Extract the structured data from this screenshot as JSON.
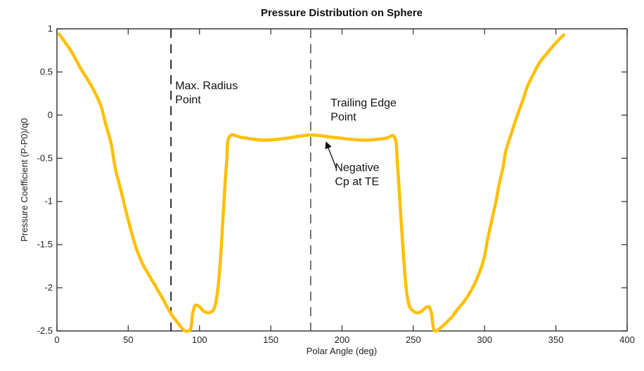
{
  "chart_data": {
    "type": "line",
    "title": "Pressure Distribution on Sphere",
    "xlabel": "Polar Angle (deg)",
    "ylabel": "Pressure Coefficient (P-P0)/q0",
    "xlim": [
      0,
      400
    ],
    "ylim": [
      -2.5,
      1
    ],
    "xticks": [
      0,
      50,
      100,
      150,
      200,
      250,
      300,
      350,
      400
    ],
    "yticks": [
      1,
      0.5,
      0,
      -0.5,
      -1,
      -1.5,
      -2,
      -2.5
    ],
    "xtick_labels": [
      "0",
      "50",
      "100",
      "150",
      "200",
      "250",
      "300",
      "350",
      "400"
    ],
    "ytick_labels": [
      "1",
      "0.5",
      "0",
      "-0.5",
      "-1",
      "-1.5",
      "-2",
      "-2.5"
    ],
    "grid": false,
    "series": [
      {
        "name": "Cp",
        "color": "#FFBF00",
        "x": [
          1.5,
          10,
          17,
          22,
          27,
          31,
          34,
          38,
          41,
          45,
          49,
          53,
          56,
          60,
          63,
          68,
          74,
          80,
          85,
          89,
          92,
          94,
          95,
          96.5,
          98,
          100,
          103,
          106,
          109,
          111,
          113,
          115,
          117,
          119,
          121,
          130,
          145,
          160,
          178,
          195,
          215,
          230,
          237,
          239,
          241,
          243,
          245,
          247,
          250,
          253,
          256,
          258,
          260,
          261.5,
          263,
          264,
          265.5,
          268,
          272,
          277,
          281,
          286,
          291,
          295,
          298,
          300,
          302,
          305,
          308,
          310,
          313,
          315,
          319,
          323,
          327,
          330,
          335,
          339,
          344,
          349,
          355.5
        ],
        "y": [
          0.94,
          0.74,
          0.53,
          0.4,
          0.25,
          0.1,
          -0.09,
          -0.33,
          -0.62,
          -0.88,
          -1.15,
          -1.4,
          -1.56,
          -1.72,
          -1.81,
          -1.95,
          -2.12,
          -2.3,
          -2.41,
          -2.49,
          -2.5,
          -2.46,
          -2.32,
          -2.22,
          -2.2,
          -2.22,
          -2.27,
          -2.29,
          -2.27,
          -2.2,
          -2.0,
          -1.6,
          -1.05,
          -0.55,
          -0.25,
          -0.26,
          -0.29,
          -0.27,
          -0.23,
          -0.26,
          -0.29,
          -0.27,
          -0.26,
          -0.6,
          -1.1,
          -1.6,
          -2.0,
          -2.2,
          -2.27,
          -2.29,
          -2.27,
          -2.24,
          -2.22,
          -2.23,
          -2.32,
          -2.46,
          -2.5,
          -2.48,
          -2.42,
          -2.34,
          -2.25,
          -2.15,
          -2.02,
          -1.88,
          -1.75,
          -1.63,
          -1.45,
          -1.22,
          -1.0,
          -0.82,
          -0.6,
          -0.41,
          -0.2,
          0.0,
          0.18,
          0.33,
          0.5,
          0.62,
          0.72,
          0.82,
          0.93
        ]
      }
    ],
    "reference_lines": [
      {
        "name": "max-radius",
        "x": 80,
        "style": "dashed",
        "color": "#000000"
      },
      {
        "name": "trailing-edge",
        "x": 178,
        "style": "dashed",
        "color": "#555555"
      }
    ],
    "annotations": [
      {
        "name": "max-radius-label",
        "lines": [
          "Max. Radius",
          "Point"
        ],
        "x": 83,
        "y": 0.3
      },
      {
        "name": "trailing-edge-label",
        "lines": [
          "Trailing Edge",
          "Point"
        ],
        "x": 192,
        "y": 0.1
      },
      {
        "name": "negative-cp-label",
        "lines": [
          "Negative",
          "Cp at TE"
        ],
        "x": 195,
        "y": -0.65,
        "arrow_to": [
          189,
          -0.32
        ],
        "arrow_from": [
          196,
          -0.62
        ]
      }
    ]
  }
}
